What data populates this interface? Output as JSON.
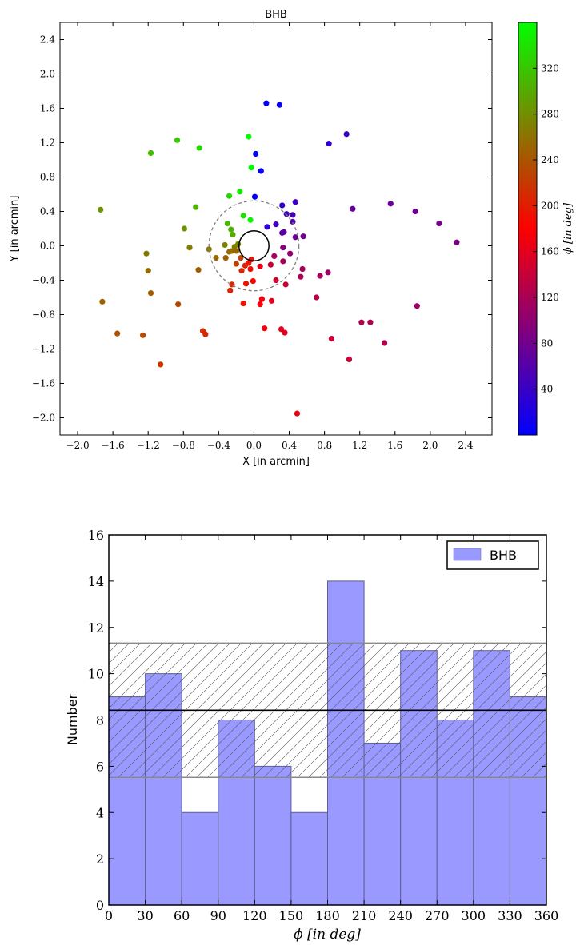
{
  "chart_data": [
    {
      "type": "scatter",
      "title": "BHB",
      "xlabel": "X [in arcmin]",
      "ylabel": "Y [in arcmin]",
      "xlim": [
        -2.2,
        2.7
      ],
      "ylim": [
        -2.2,
        2.6
      ],
      "xticks": [
        "−2.0",
        "−1.6",
        "−1.2",
        "−0.8",
        "−0.4",
        "0.0",
        "0.4",
        "0.8",
        "1.2",
        "1.6",
        "2.0",
        "2.4"
      ],
      "xtick_values": [
        -2.0,
        -1.6,
        -1.2,
        -0.8,
        -0.4,
        0.0,
        0.4,
        0.8,
        1.2,
        1.6,
        2.0,
        2.4
      ],
      "yticks": [
        "−2.0",
        "−1.6",
        "−1.2",
        "−0.8",
        "−0.4",
        "0.0",
        "0.4",
        "0.8",
        "1.2",
        "1.6",
        "2.0",
        "2.4"
      ],
      "ytick_values": [
        -2.0,
        -1.6,
        -1.2,
        -0.8,
        -0.4,
        0.0,
        0.4,
        0.8,
        1.2,
        1.6,
        2.0,
        2.4
      ],
      "grid": false,
      "colorbar": {
        "label": "ϕ [in deg]",
        "range": [
          0,
          360
        ],
        "ticks": [
          "40",
          "80",
          "120",
          "160",
          "200",
          "240",
          "280",
          "320"
        ],
        "tick_values": [
          40,
          80,
          120,
          160,
          200,
          240,
          280,
          320
        ],
        "colors": [
          "#0000ff",
          "#ff0000",
          "#00ff00"
        ]
      },
      "circles": [
        {
          "name": "inner",
          "cx": 0.0,
          "cy": 0.0,
          "r": 0.17,
          "style": "solid",
          "color": "#000000"
        },
        {
          "name": "outer",
          "cx": 0.0,
          "cy": 0.0,
          "r": 0.51,
          "style": "dashed",
          "color": "#808080"
        }
      ],
      "points": [
        [
          -1.74,
          0.42
        ],
        [
          -1.72,
          -0.65
        ],
        [
          -1.55,
          -1.02
        ],
        [
          -1.26,
          -1.04
        ],
        [
          -1.22,
          -0.09
        ],
        [
          -1.2,
          -0.29
        ],
        [
          -1.17,
          -0.55
        ],
        [
          -1.17,
          1.08
        ],
        [
          -1.06,
          -1.38
        ],
        [
          -0.87,
          1.23
        ],
        [
          -0.86,
          -0.68
        ],
        [
          -0.79,
          0.2
        ],
        [
          -0.73,
          -0.02
        ],
        [
          -0.66,
          0.45
        ],
        [
          -0.63,
          -0.28
        ],
        [
          -0.62,
          1.14
        ],
        [
          -0.58,
          -0.99
        ],
        [
          -0.55,
          -1.03
        ],
        [
          -0.51,
          -0.04
        ],
        [
          -0.43,
          -0.14
        ],
        [
          -0.33,
          0.01
        ],
        [
          -0.32,
          -0.14
        ],
        [
          -0.3,
          0.26
        ],
        [
          -0.28,
          0.58
        ],
        [
          -0.28,
          -0.07
        ],
        [
          -0.27,
          -0.52
        ],
        [
          -0.26,
          0.19
        ],
        [
          -0.25,
          -0.06
        ],
        [
          -0.25,
          -0.45
        ],
        [
          -0.24,
          0.13
        ],
        [
          -0.22,
          -0.01
        ],
        [
          -0.2,
          -0.21
        ],
        [
          -0.2,
          -0.06
        ],
        [
          -0.18,
          0.02
        ],
        [
          -0.16,
          0.63
        ],
        [
          -0.15,
          -0.14
        ],
        [
          -0.14,
          -0.29
        ],
        [
          -0.12,
          0.35
        ],
        [
          -0.12,
          -0.67
        ],
        [
          -0.1,
          -0.23
        ],
        [
          -0.09,
          -0.44
        ],
        [
          -0.06,
          -0.2
        ],
        [
          -0.06,
          1.27
        ],
        [
          -0.04,
          0.3
        ],
        [
          -0.04,
          -0.27
        ],
        [
          -0.03,
          -0.16
        ],
        [
          -0.03,
          0.91
        ],
        [
          -0.01,
          -0.41
        ],
        [
          0.01,
          0.57
        ],
        [
          0.02,
          1.07
        ],
        [
          0.07,
          -0.24
        ],
        [
          0.07,
          -0.68
        ],
        [
          0.08,
          0.87
        ],
        [
          0.09,
          -0.62
        ],
        [
          0.12,
          -0.96
        ],
        [
          0.14,
          1.66
        ],
        [
          0.15,
          0.22
        ],
        [
          0.19,
          -0.22
        ],
        [
          0.2,
          -0.64
        ],
        [
          0.23,
          -0.12
        ],
        [
          0.25,
          0.25
        ],
        [
          0.25,
          -0.4
        ],
        [
          0.29,
          1.64
        ],
        [
          0.31,
          -0.97
        ],
        [
          0.32,
          0.47
        ],
        [
          0.32,
          0.15
        ],
        [
          0.33,
          -0.02
        ],
        [
          0.33,
          -0.18
        ],
        [
          0.34,
          0.16
        ],
        [
          0.35,
          -1.01
        ],
        [
          0.36,
          -0.45
        ],
        [
          0.37,
          0.37
        ],
        [
          0.41,
          -0.09
        ],
        [
          0.44,
          0.28
        ],
        [
          0.44,
          0.36
        ],
        [
          0.47,
          0.51
        ],
        [
          0.47,
          0.1
        ],
        [
          0.49,
          -1.95
        ],
        [
          0.53,
          -0.36
        ],
        [
          0.55,
          -0.27
        ],
        [
          0.56,
          0.11
        ],
        [
          0.71,
          -0.6
        ],
        [
          0.75,
          -0.35
        ],
        [
          0.84,
          -0.31
        ],
        [
          0.85,
          1.19
        ],
        [
          0.88,
          -1.08
        ],
        [
          1.05,
          1.3
        ],
        [
          1.08,
          -1.32
        ],
        [
          1.12,
          0.43
        ],
        [
          1.22,
          -0.89
        ],
        [
          1.32,
          -0.89
        ],
        [
          1.48,
          -1.13
        ],
        [
          1.55,
          0.49
        ],
        [
          1.83,
          0.4
        ],
        [
          1.85,
          -0.7
        ],
        [
          2.1,
          0.26
        ],
        [
          2.3,
          0.04
        ]
      ]
    },
    {
      "type": "bar",
      "xlabel": "ϕ [in deg]",
      "ylabel": "Number",
      "xlim": [
        0,
        360
      ],
      "ylim": [
        0,
        16
      ],
      "xticks": [
        "0",
        "30",
        "60",
        "90",
        "120",
        "150",
        "180",
        "210",
        "240",
        "270",
        "300",
        "330",
        "360"
      ],
      "xtick_values": [
        0,
        30,
        60,
        90,
        120,
        150,
        180,
        210,
        240,
        270,
        300,
        330,
        360
      ],
      "yticks": [
        "0",
        "2",
        "4",
        "6",
        "8",
        "10",
        "12",
        "14",
        "16"
      ],
      "ytick_values": [
        0,
        2,
        4,
        6,
        8,
        10,
        12,
        14,
        16
      ],
      "bin_edges": [
        0,
        30,
        60,
        90,
        120,
        150,
        180,
        210,
        240,
        270,
        300,
        330,
        360
      ],
      "series": [
        {
          "name": "BHB",
          "values": [
            9,
            10,
            4,
            8,
            6,
            4,
            14,
            7,
            11,
            8,
            11,
            9
          ],
          "color": "#9999ff"
        }
      ],
      "mean_line": 8.42,
      "band": [
        5.52,
        11.32
      ],
      "legend": "top-right"
    }
  ]
}
